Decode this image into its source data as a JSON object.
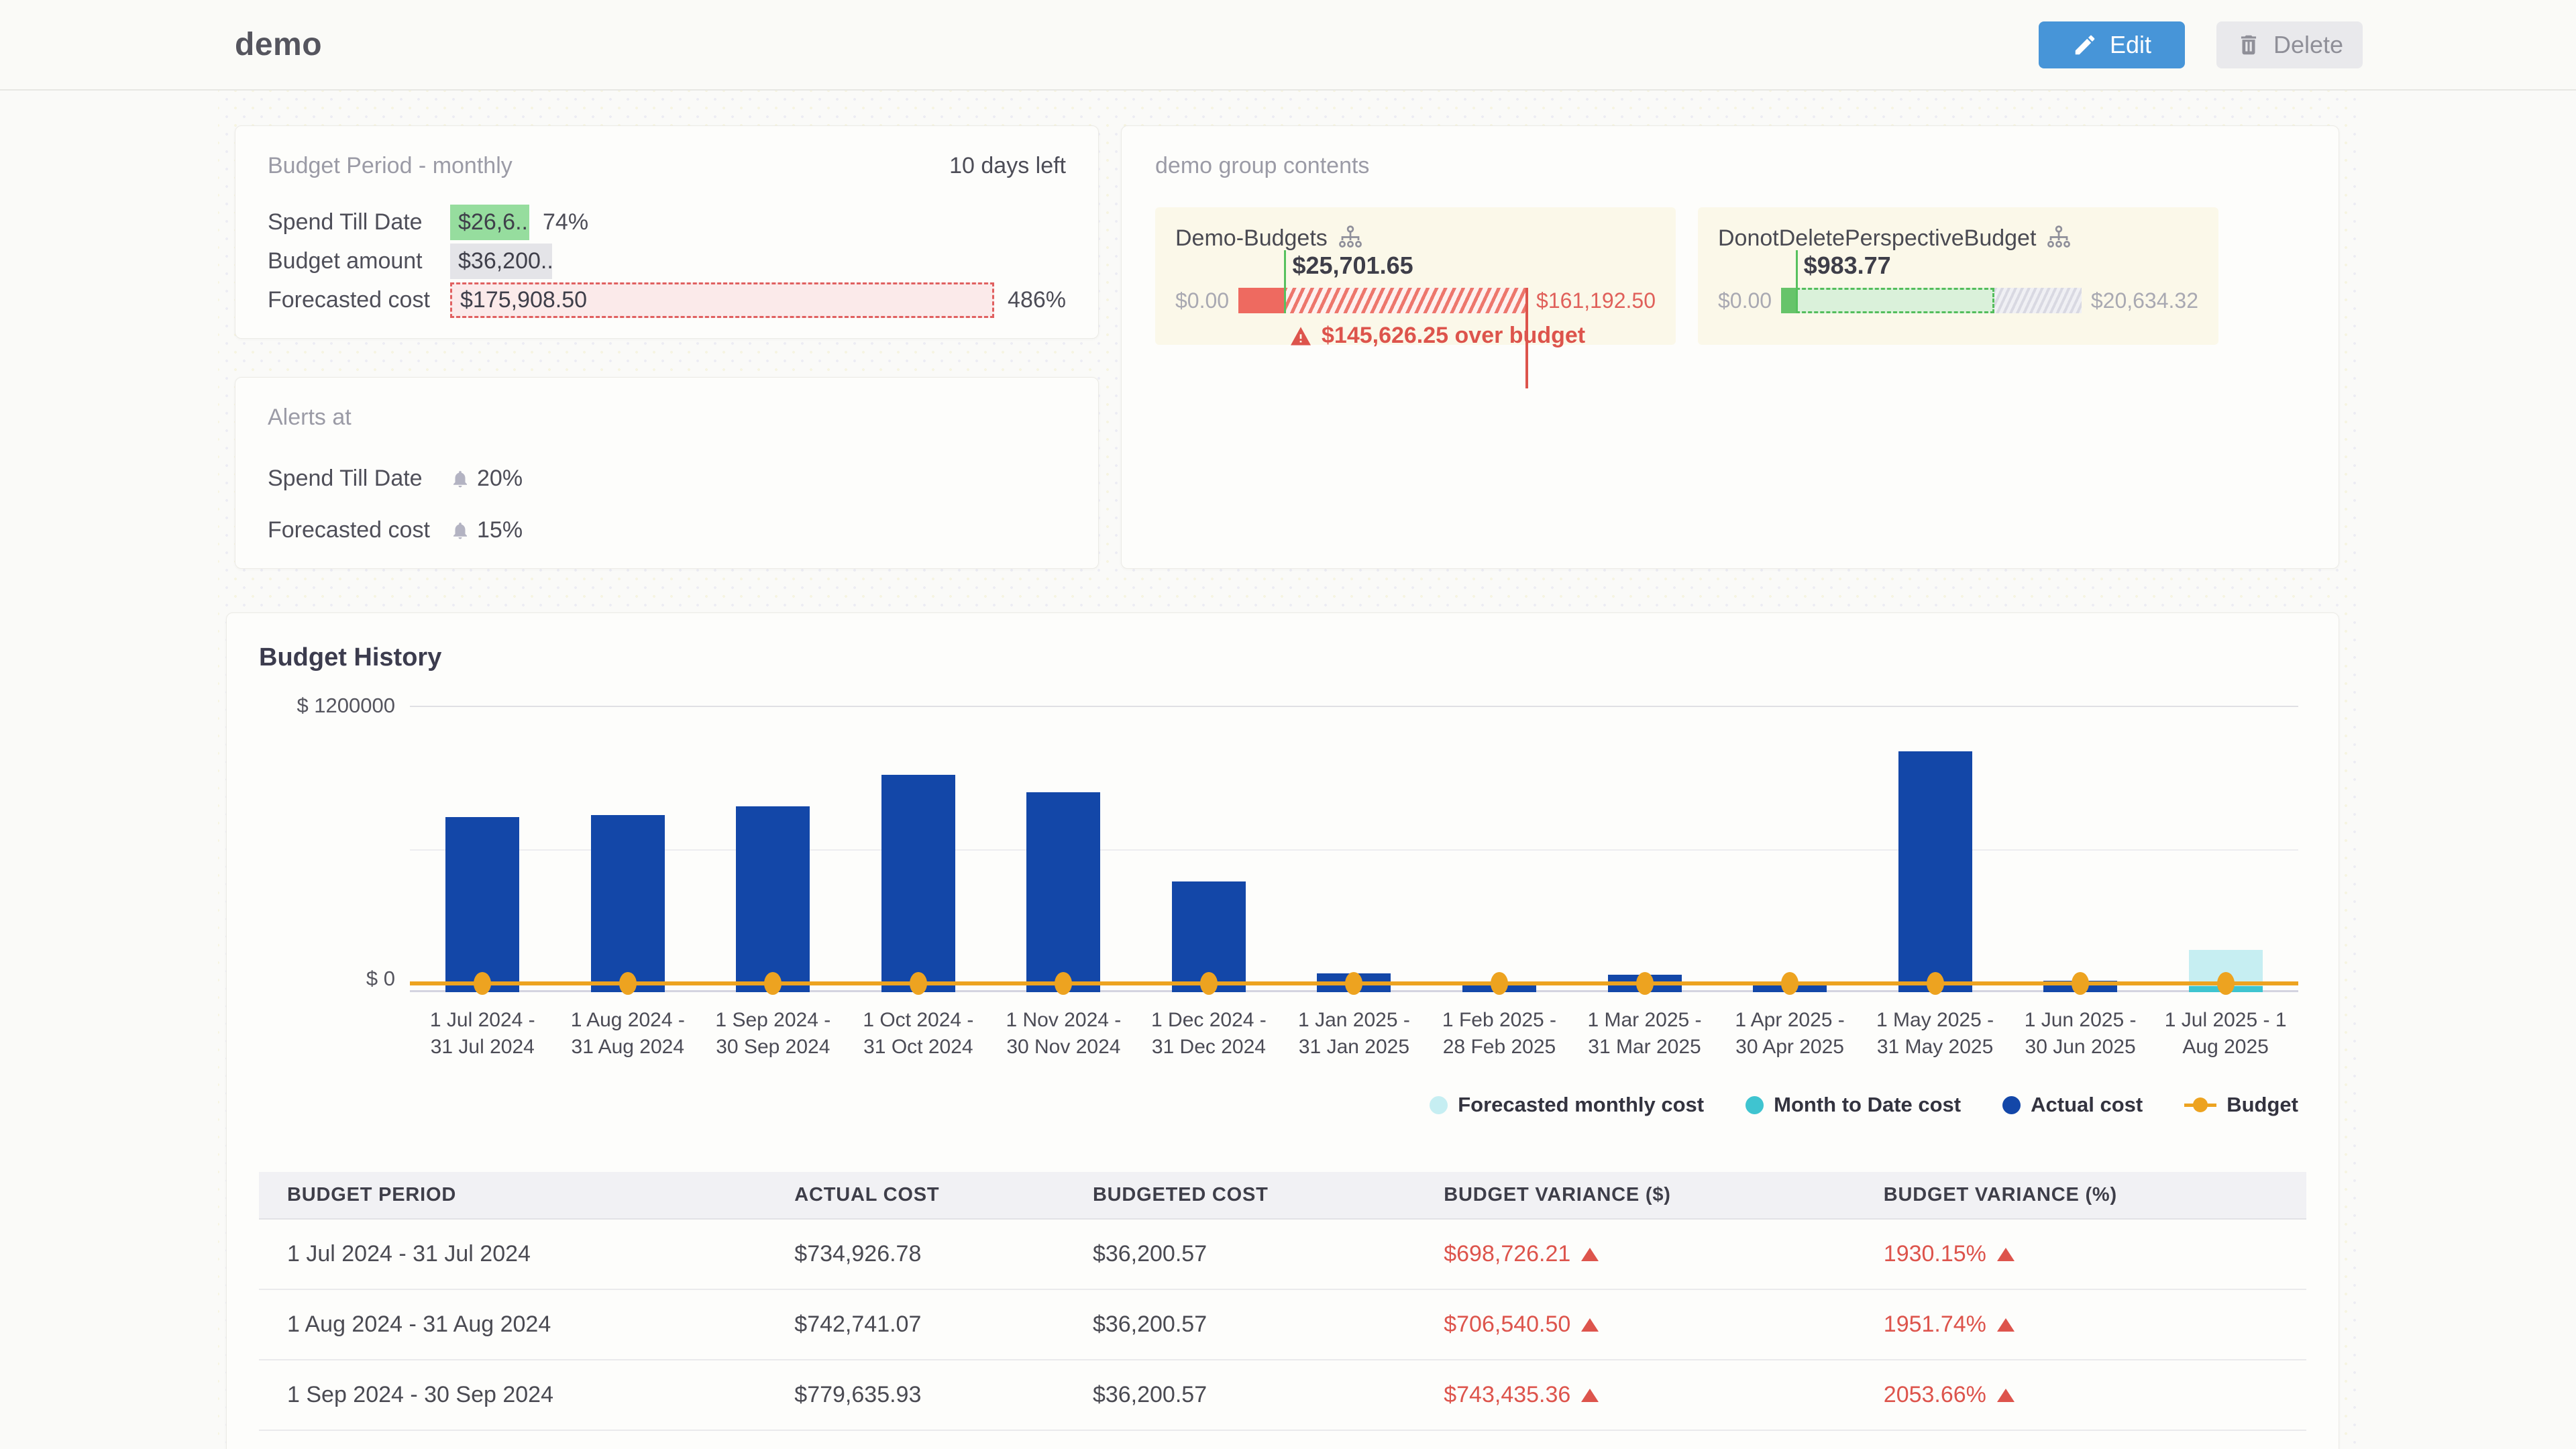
{
  "page": {
    "title": "demo"
  },
  "header": {
    "edit_label": "Edit",
    "delete_label": "Delete"
  },
  "budget_period_card": {
    "title": "Budget Period - monthly",
    "days_left": "10 days left",
    "rows": [
      {
        "label": "Spend Till Date",
        "value": "$26,6...",
        "pct": "74%",
        "style": "green"
      },
      {
        "label": "Budget amount",
        "value": "$36,200....",
        "pct": "",
        "style": "gray"
      },
      {
        "label": "Forecasted cost",
        "value": "$175,908.50",
        "pct": "486%",
        "style": "over"
      }
    ]
  },
  "alerts_card": {
    "title": "Alerts at",
    "rows": [
      {
        "label": "Spend Till Date",
        "value": "20%"
      },
      {
        "label": "Forecasted cost",
        "value": "15%"
      }
    ]
  },
  "group_card": {
    "title": "demo group contents",
    "budgets": [
      {
        "name": "Demo-Budgets",
        "marker_value": "$25,701.65",
        "min_label": "$0.00",
        "max_label": "$161,192.50",
        "status": "over",
        "solid_pct": 15.9,
        "marker_pct": 15.9,
        "over_text": "$145,626.25 over budget"
      },
      {
        "name": "DonotDeletePerspectiveBudget",
        "marker_value": "$983.77",
        "min_label": "$0.00",
        "max_label": "$20,634.32",
        "status": "under",
        "solid_pct": 4.8,
        "marker_pct": 4.8,
        "forecast_end_pct": 71
      }
    ]
  },
  "chart_data": {
    "type": "bar",
    "title": "Budget History",
    "ylabel_top": "$ 1200000",
    "ylabel_bottom": "$ 0",
    "ymax": 1200000,
    "grid": "horizontal",
    "legend_position": "bottom-right",
    "categories": [
      "1 Jul 2024 - 31 Jul 2024",
      "1 Aug 2024 - 31 Aug 2024",
      "1 Sep 2024 - 30 Sep 2024",
      "1 Oct 2024 - 31 Oct 2024",
      "1 Nov 2024 - 30 Nov 2024",
      "1 Dec 2024 - 31 Dec 2024",
      "1 Jan 2025 - 31 Jan 2025",
      "1 Feb 2025 - 28 Feb 2025",
      "1 Mar 2025 - 31 Mar 2025",
      "1 Apr 2025 - 30 Apr 2025",
      "1 May 2025 - 31 May 2025",
      "1 Jun 2025 - 30 Jun 2025",
      "1 Jul 2025 - 1 Aug 2025"
    ],
    "series": [
      {
        "name": "Actual cost",
        "values": [
          734926.78,
          742741.07,
          779635.93,
          910000,
          838000,
          465000,
          80000,
          45000,
          72000,
          42000,
          1010000,
          48000,
          null
        ]
      },
      {
        "name": "Forecasted monthly cost",
        "values": [
          null,
          null,
          null,
          null,
          null,
          null,
          null,
          null,
          null,
          null,
          null,
          null,
          175908.5
        ]
      },
      {
        "name": "Month to Date cost",
        "values": [
          null,
          null,
          null,
          null,
          null,
          null,
          null,
          null,
          null,
          null,
          null,
          null,
          26650
        ]
      },
      {
        "name": "Budget",
        "constant": 36200.57
      }
    ],
    "legend": [
      {
        "label": "Forecasted monthly cost",
        "swatch": "forecast"
      },
      {
        "label": "Month to Date cost",
        "swatch": "mtd"
      },
      {
        "label": "Actual cost",
        "swatch": "actual"
      },
      {
        "label": "Budget",
        "swatch": "budget"
      }
    ]
  },
  "table": {
    "headers": [
      "BUDGET PERIOD",
      "ACTUAL COST",
      "BUDGETED COST",
      "BUDGET VARIANCE ($)",
      "BUDGET VARIANCE (%)"
    ],
    "rows": [
      [
        "1 Jul 2024 - 31 Jul 2024",
        "$734,926.78",
        "$36,200.57",
        "$698,726.21",
        "1930.15%"
      ],
      [
        "1 Aug 2024 - 31 Aug 2024",
        "$742,741.07",
        "$36,200.57",
        "$706,540.50",
        "1951.74%"
      ],
      [
        "1 Sep 2024 - 30 Sep 2024",
        "$779,635.93",
        "$36,200.57",
        "$743,435.36",
        "2053.66%"
      ]
    ]
  },
  "colors": {
    "accent_blue": "#4795d8",
    "bar_actual": "#1347a8",
    "bar_forecast": "#c6eef2",
    "bar_mtd": "#3fc4d0",
    "budget_line": "#eda320",
    "over_red": "#dd544c",
    "chip_green": "#96dd9e",
    "chip_gray": "#e4e4e8",
    "panel_bg": "#fbf8e9",
    "marker_green": "#57c15e"
  }
}
